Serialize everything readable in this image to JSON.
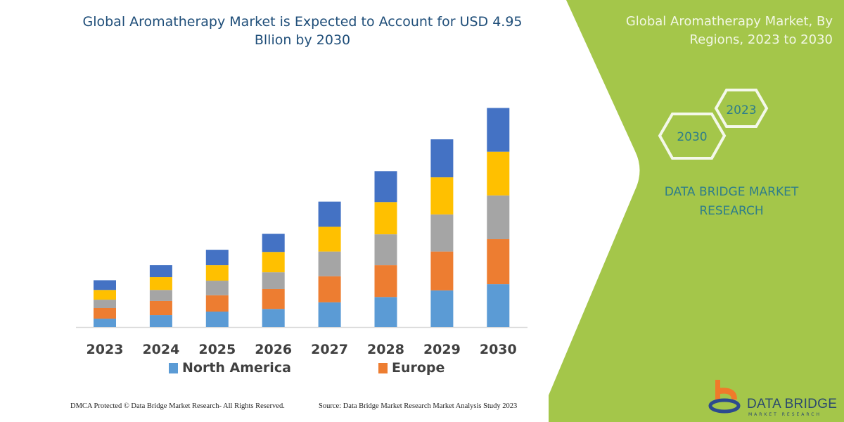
{
  "chart_data": {
    "type": "bar",
    "stacked": true,
    "title": "Global Aromatherapy Market is Expected to Account for USD 4.95 Bllion by 2030",
    "categories": [
      "2023",
      "2024",
      "2025",
      "2026",
      "2027",
      "2028",
      "2029",
      "2030"
    ],
    "series": [
      {
        "name": "North America",
        "color": "#5b9bd5",
        "values": [
          0.19,
          0.27,
          0.35,
          0.41,
          0.56,
          0.68,
          0.83,
          0.97
        ]
      },
      {
        "name": "Europe",
        "color": "#ed7d31",
        "values": [
          0.24,
          0.32,
          0.37,
          0.45,
          0.59,
          0.72,
          0.88,
          1.02
        ]
      },
      {
        "color": "#a5a5a5",
        "values": [
          0.19,
          0.25,
          0.33,
          0.38,
          0.56,
          0.7,
          0.84,
          0.99
        ]
      },
      {
        "color": "#ffc000",
        "values": [
          0.22,
          0.29,
          0.35,
          0.46,
          0.56,
          0.73,
          0.84,
          0.99
        ]
      },
      {
        "color": "#4472c4",
        "values": [
          0.22,
          0.27,
          0.35,
          0.41,
          0.57,
          0.7,
          0.86,
          0.99
        ]
      }
    ],
    "xlabel": "",
    "ylabel": "",
    "y_axis_visible": false,
    "grid": false,
    "legend_placement": "bottom"
  },
  "side_panel": {
    "title": "Global Aromatherapy Market, By Regions, 2023 to 2030",
    "hex_start": "2023",
    "hex_end": "2030",
    "brand": "DATA BRIDGE MARKET RESEARCH",
    "panel_color": "#a4c64a"
  },
  "logo": {
    "name": "DATA BRIDGE",
    "tagline": "MARKET RESEARCH"
  },
  "footer": {
    "copyright": "DMCA Protected © Data Bridge Market Research- All Rights Reserved.",
    "source": "Source: Data Bridge Market Research Market Analysis Study 2023"
  }
}
